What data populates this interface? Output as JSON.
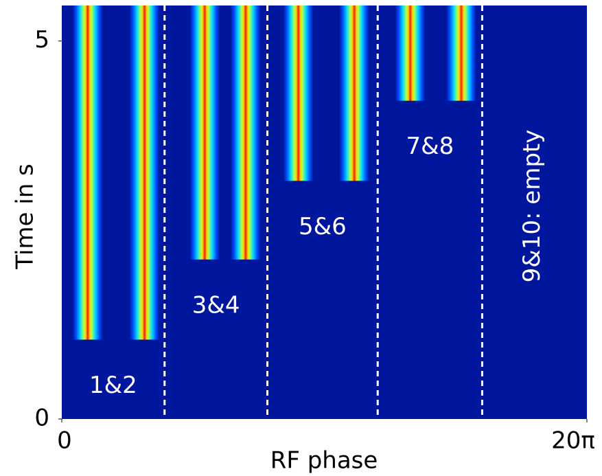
{
  "chart_data": {
    "type": "waterfall",
    "xlabel": "RF phase",
    "ylabel": "Time in s",
    "xlim": [
      0,
      62.83
    ],
    "xticks": [
      0,
      {
        "value": 62.83,
        "label": "20π"
      }
    ],
    "ylim": [
      0,
      5.47
    ],
    "yticks": [
      0,
      5
    ],
    "background": "#00169c",
    "separators": [
      12.3,
      24.6,
      37.8,
      50.3
    ],
    "groups": [
      {
        "label": "1&2",
        "bunch_phases": [
          3.1,
          9.9
        ],
        "start_time": 1.05
      },
      {
        "label": "3&4",
        "bunch_phases": [
          17.1,
          22.0
        ],
        "start_time": 2.11
      },
      {
        "label": "5&6",
        "bunch_phases": [
          28.3,
          35.0
        ],
        "start_time": 3.15
      },
      {
        "label": "7&8",
        "bunch_phases": [
          41.7,
          47.8
        ],
        "start_time": 4.21
      },
      {
        "label": "9&10: empty"
      }
    ]
  }
}
